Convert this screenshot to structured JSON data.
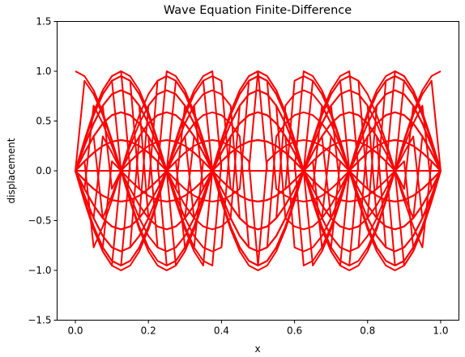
{
  "chart_data": {
    "type": "line",
    "title": "Wave Equation Finite-Difference",
    "xlabel": "x",
    "ylabel": "displacement",
    "xlim": [
      -0.05,
      1.05
    ],
    "ylim": [
      -1.5,
      1.5
    ],
    "xticks": [
      0.0,
      0.2,
      0.4,
      0.6,
      0.8,
      1.0
    ],
    "xtick_labels": [
      "0.0",
      "0.2",
      "0.4",
      "0.6",
      "0.8",
      "1.0"
    ],
    "yticks": [
      -1.5,
      -1.0,
      -0.5,
      0.0,
      0.5,
      1.0,
      1.5
    ],
    "ytick_labels": [
      "−1.5",
      "−1.0",
      "−0.5",
      "0.0",
      "0.5",
      "1.0",
      "1.5"
    ],
    "grid": false,
    "line_color": "#ff0000",
    "num_points": 41,
    "wave_cycles": 2,
    "num_frames": 40
  }
}
